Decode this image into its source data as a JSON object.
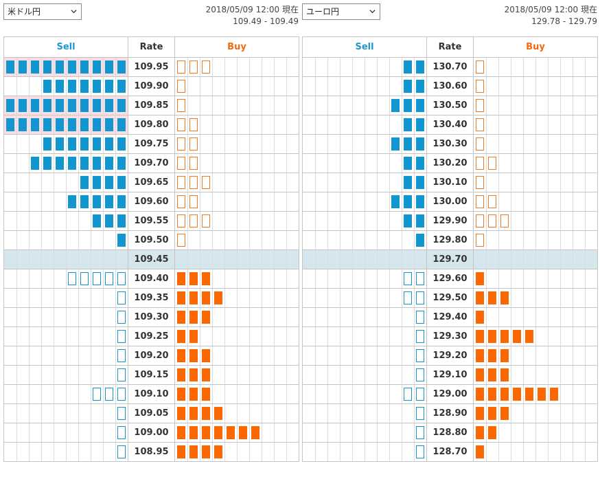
{
  "panels": [
    {
      "pair": "米ドル円",
      "timestamp": "2018/05/09 12:00 現在",
      "quote": "109.49 - 109.49",
      "headers": {
        "sell": "Sell",
        "rate": "Rate",
        "buy": "Buy"
      },
      "current_rate": "109.45",
      "rows": [
        {
          "rate": "109.95",
          "sell": 10,
          "buy": 3,
          "hl": true
        },
        {
          "rate": "109.90",
          "sell": 7,
          "buy": 1
        },
        {
          "rate": "109.85",
          "sell": 10,
          "buy": 1,
          "hl": true
        },
        {
          "rate": "109.80",
          "sell": 10,
          "buy": 2,
          "hl": true
        },
        {
          "rate": "109.75",
          "sell": 7,
          "buy": 2
        },
        {
          "rate": "109.70",
          "sell": 8,
          "buy": 2
        },
        {
          "rate": "109.65",
          "sell": 4,
          "buy": 3
        },
        {
          "rate": "109.60",
          "sell": 5,
          "buy": 2
        },
        {
          "rate": "109.55",
          "sell": 3,
          "buy": 3
        },
        {
          "rate": "109.50",
          "sell": 1,
          "buy": 1
        },
        {
          "rate": "109.45",
          "sell": 0,
          "buy": 0,
          "current": true
        },
        {
          "rate": "109.40",
          "sell": 5,
          "buy": 3
        },
        {
          "rate": "109.35",
          "sell": 1,
          "buy": 4
        },
        {
          "rate": "109.30",
          "sell": 1,
          "buy": 3
        },
        {
          "rate": "109.25",
          "sell": 1,
          "buy": 2
        },
        {
          "rate": "109.20",
          "sell": 1,
          "buy": 3
        },
        {
          "rate": "109.15",
          "sell": 1,
          "buy": 3
        },
        {
          "rate": "109.10",
          "sell": 3,
          "buy": 3
        },
        {
          "rate": "109.05",
          "sell": 1,
          "buy": 4
        },
        {
          "rate": "109.00",
          "sell": 1,
          "buy": 7
        },
        {
          "rate": "108.95",
          "sell": 1,
          "buy": 4
        }
      ]
    },
    {
      "pair": "ユーロ円",
      "timestamp": "2018/05/09 12:00 現在",
      "quote": "129.78 - 129.79",
      "headers": {
        "sell": "Sell",
        "rate": "Rate",
        "buy": "Buy"
      },
      "current_rate": "129.70",
      "rows": [
        {
          "rate": "130.70",
          "sell": 2,
          "buy": 1
        },
        {
          "rate": "130.60",
          "sell": 2,
          "buy": 1
        },
        {
          "rate": "130.50",
          "sell": 3,
          "buy": 1
        },
        {
          "rate": "130.40",
          "sell": 2,
          "buy": 1
        },
        {
          "rate": "130.30",
          "sell": 3,
          "buy": 1
        },
        {
          "rate": "130.20",
          "sell": 2,
          "buy": 2
        },
        {
          "rate": "130.10",
          "sell": 2,
          "buy": 1
        },
        {
          "rate": "130.00",
          "sell": 3,
          "buy": 2
        },
        {
          "rate": "129.90",
          "sell": 2,
          "buy": 3
        },
        {
          "rate": "129.80",
          "sell": 1,
          "buy": 1
        },
        {
          "rate": "129.70",
          "sell": 0,
          "buy": 0,
          "current": true
        },
        {
          "rate": "129.60",
          "sell": 2,
          "buy": 1
        },
        {
          "rate": "129.50",
          "sell": 2,
          "buy": 3
        },
        {
          "rate": "129.40",
          "sell": 1,
          "buy": 1
        },
        {
          "rate": "129.30",
          "sell": 1,
          "buy": 5
        },
        {
          "rate": "129.20",
          "sell": 1,
          "buy": 3
        },
        {
          "rate": "129.10",
          "sell": 1,
          "buy": 3
        },
        {
          "rate": "129.00",
          "sell": 2,
          "buy": 7
        },
        {
          "rate": "128.90",
          "sell": 1,
          "buy": 3
        },
        {
          "rate": "128.80",
          "sell": 1,
          "buy": 2
        },
        {
          "rate": "128.70",
          "sell": 1,
          "buy": 1
        }
      ]
    }
  ],
  "colors": {
    "sell_accent": "#1296d0",
    "buy_accent": "#fb6700",
    "current_row_bg": "#d5e6ec",
    "highlight_row_bg": "#f9dfe3",
    "grid": "#c4c4c4"
  }
}
